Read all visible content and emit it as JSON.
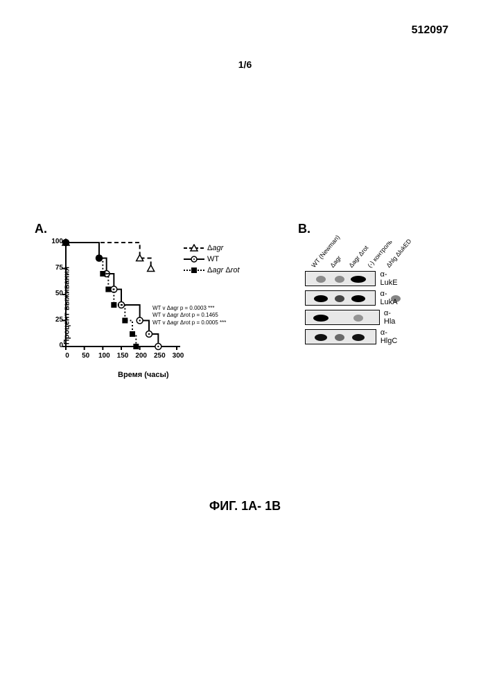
{
  "header": {
    "doc_id": "512097",
    "page_number": "1/6"
  },
  "figure": {
    "caption": "ФИГ. 1А- 1В"
  },
  "panelA": {
    "label": "A.",
    "y_axis_label": "Процент выживания",
    "x_axis_label": "Время (часы)",
    "chart": {
      "type": "survival-step",
      "xlim": [
        0,
        300
      ],
      "ylim": [
        0,
        100
      ],
      "xtick_step": 50,
      "ytick_step": 25,
      "axis_color": "#000000",
      "axis_width": 2,
      "tick_fontsize": 10,
      "tick_fontweight": "bold",
      "series": [
        {
          "name": "Δagr",
          "marker": "triangle-open",
          "line_style": "dashed",
          "color": "#000000",
          "points": [
            [
              0,
              100
            ],
            [
              95,
              100
            ],
            [
              95,
              100
            ],
            [
              200,
              100
            ],
            [
              200,
              85
            ],
            [
              230,
              85
            ],
            [
              230,
              75
            ]
          ]
        },
        {
          "name": "WT",
          "marker": "circle-open-dot",
          "line_style": "solid",
          "color": "#000000",
          "points": [
            [
              0,
              100
            ],
            [
              90,
              100
            ],
            [
              90,
              85
            ],
            [
              110,
              85
            ],
            [
              110,
              70
            ],
            [
              130,
              70
            ],
            [
              130,
              55
            ],
            [
              150,
              55
            ],
            [
              150,
              40
            ],
            [
              200,
              40
            ],
            [
              200,
              25
            ],
            [
              225,
              25
            ],
            [
              225,
              12
            ],
            [
              250,
              12
            ],
            [
              250,
              0
            ],
            [
              260,
              0
            ]
          ]
        },
        {
          "name": "Δagr Δrot",
          "marker": "square-filled",
          "line_style": "dotted",
          "color": "#000000",
          "points": [
            [
              0,
              100
            ],
            [
              90,
              100
            ],
            [
              90,
              85
            ],
            [
              100,
              85
            ],
            [
              100,
              70
            ],
            [
              115,
              70
            ],
            [
              115,
              55
            ],
            [
              130,
              55
            ],
            [
              130,
              40
            ],
            [
              160,
              40
            ],
            [
              160,
              25
            ],
            [
              180,
              25
            ],
            [
              180,
              12
            ],
            [
              190,
              12
            ],
            [
              190,
              0
            ],
            [
              200,
              0
            ]
          ]
        }
      ]
    },
    "legend": {
      "items": [
        {
          "label": "Δagr",
          "italicPart": "agr"
        },
        {
          "label": "WT",
          "italicPart": ""
        },
        {
          "label": "Δagr Δrot",
          "italicPart": "agr rot"
        }
      ]
    },
    "stats": [
      "WT v Δagr p = 0.0003 ***",
      "WT v Δagr Δrot p = 0.1465",
      "WT v Δagr Δrot p = 0.0005 ***"
    ]
  },
  "panelB": {
    "label": "B.",
    "columns": [
      "WT (Newman)",
      "Δagr",
      "Δagr Δrot",
      "(-) контроль",
      "Δhlg ΔlukED"
    ],
    "rows": [
      {
        "label": "α-LukE",
        "bands": [
          {
            "lane": 0,
            "intensity": 0.2,
            "width": 14
          },
          {
            "lane": 1,
            "intensity": 0.2,
            "width": 14
          },
          {
            "lane": 2,
            "intensity": 1.0,
            "width": 22
          }
        ]
      },
      {
        "label": "α-LukA",
        "bands": [
          {
            "lane": 0,
            "intensity": 1.0,
            "width": 20
          },
          {
            "lane": 1,
            "intensity": 0.6,
            "width": 14
          },
          {
            "lane": 2,
            "intensity": 1.0,
            "width": 20
          },
          {
            "lane": 4,
            "intensity": 0.3,
            "width": 14
          }
        ]
      },
      {
        "label": "α-Hla",
        "bands": [
          {
            "lane": 0,
            "intensity": 1.0,
            "width": 22
          },
          {
            "lane": 2,
            "intensity": 0.15,
            "width": 14
          }
        ]
      },
      {
        "label": "α-HlgC",
        "bands": [
          {
            "lane": 0,
            "intensity": 0.9,
            "width": 18
          },
          {
            "lane": 1,
            "intensity": 0.4,
            "width": 14
          },
          {
            "lane": 2,
            "intensity": 0.9,
            "width": 18
          }
        ]
      }
    ],
    "lane_positions": [
      10,
      37,
      64,
      91,
      118
    ],
    "strip_background": "#e8e8e8",
    "strip_border": "#000000"
  }
}
